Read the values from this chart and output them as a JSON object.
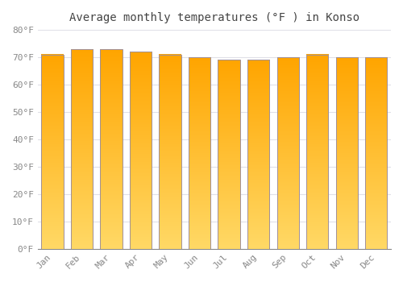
{
  "months": [
    "Jan",
    "Feb",
    "Mar",
    "Apr",
    "May",
    "Jun",
    "Jul",
    "Aug",
    "Sep",
    "Oct",
    "Nov",
    "Dec"
  ],
  "values": [
    71,
    73,
    73,
    72,
    71,
    70,
    69,
    69,
    70,
    71,
    70,
    70
  ],
  "title": "Average monthly temperatures (°F ) in Konso",
  "ylim": [
    0,
    80
  ],
  "yticks": [
    0,
    10,
    20,
    30,
    40,
    50,
    60,
    70,
    80
  ],
  "bar_color_top": "#FFA500",
  "bar_color_bottom": "#FFD966",
  "bar_edge_color": "#A0909A",
  "background_color": "#FFFFFF",
  "grid_color": "#E0E0E8",
  "tick_label_color": "#888888",
  "title_color": "#444444",
  "font_family": "monospace",
  "bar_width": 0.75
}
